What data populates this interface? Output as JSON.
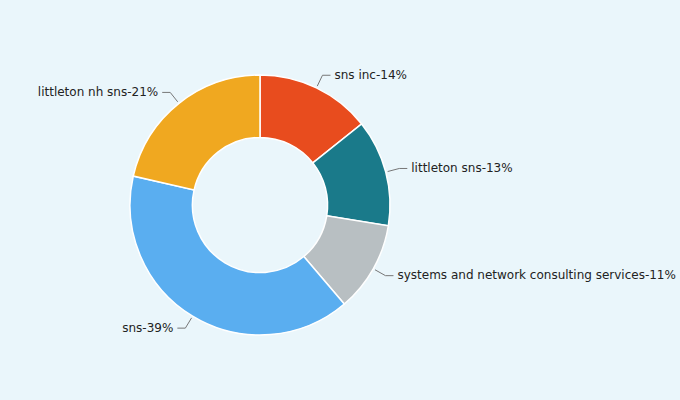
{
  "chart_data": {
    "type": "donut",
    "categories": [
      "sns inc-14%",
      "littleton sns-13%",
      "systems and network consulting services-11%",
      "sns-39%",
      "littleton nh sns-21%"
    ],
    "values": [
      14,
      13,
      11,
      39,
      21
    ],
    "colors": [
      "#e84c1e",
      "#1a7a8a",
      "#b8bfc2",
      "#5aaef0",
      "#f0a820"
    ]
  }
}
